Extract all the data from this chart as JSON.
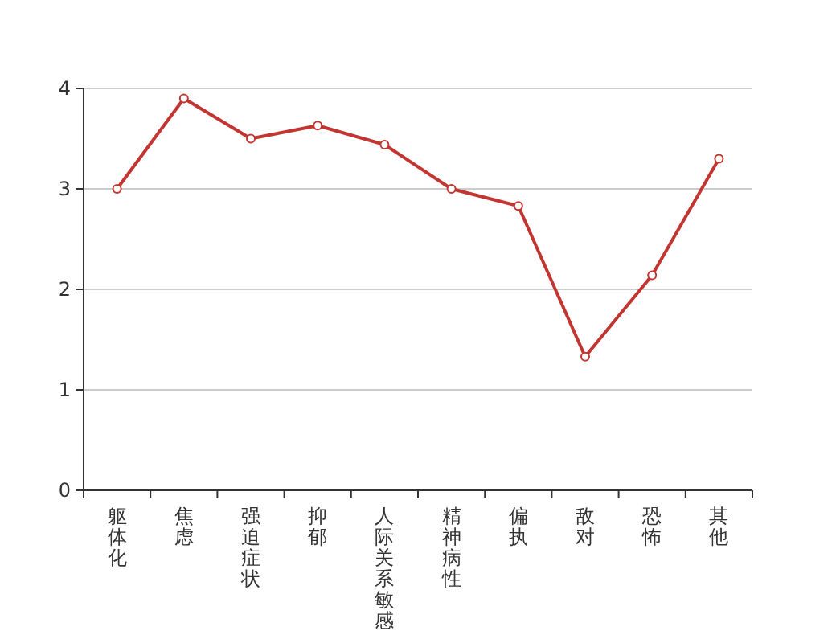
{
  "chart_data": {
    "type": "line",
    "categories": [
      "躯体化",
      "焦虑",
      "强迫症状",
      "抑郁",
      "人际关系敏感",
      "精神病性",
      "偏执",
      "敌对",
      "恐怖",
      "其他"
    ],
    "series": [
      {
        "color": "#c23531",
        "values": [
          3.0,
          3.9,
          3.5,
          3.63,
          3.44,
          3.0,
          2.83,
          1.33,
          2.14,
          3.3
        ]
      }
    ],
    "ylim": [
      0,
      4
    ],
    "yticks": [
      0,
      1,
      2,
      3,
      4
    ],
    "grid": "y",
    "marker": "circle",
    "line_style": "solid"
  }
}
